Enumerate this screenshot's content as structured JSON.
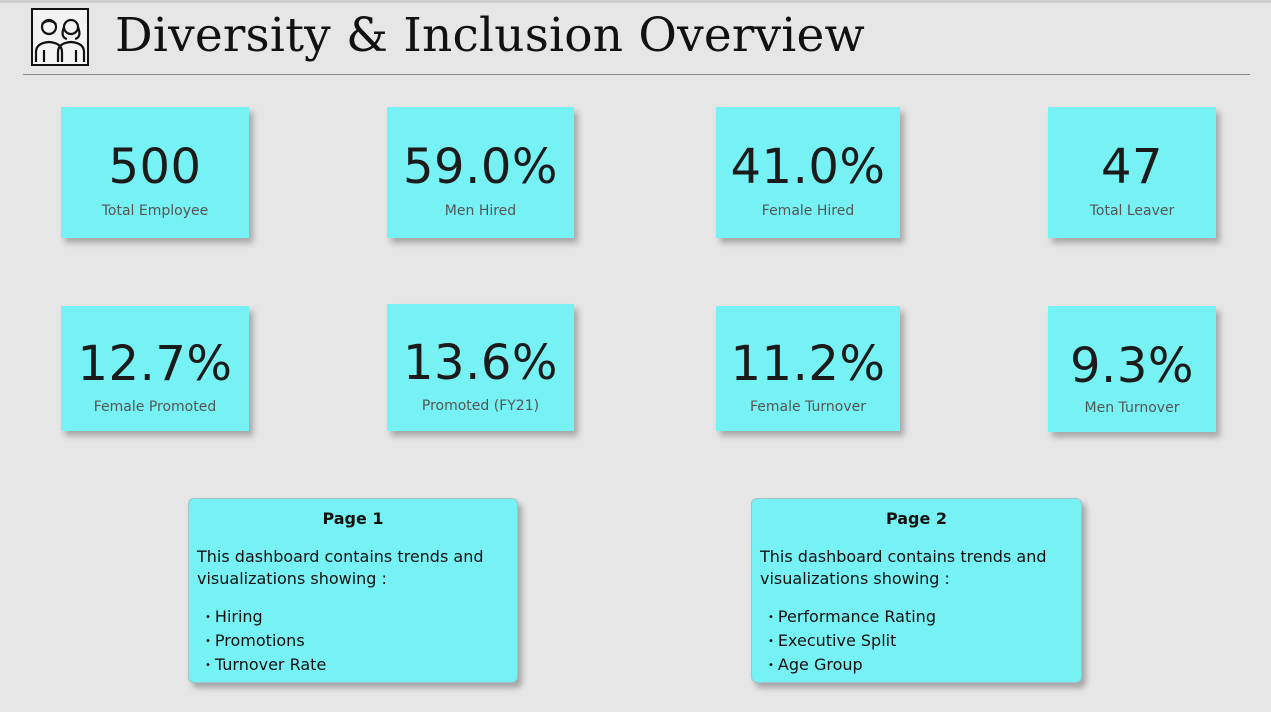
{
  "header": {
    "title": "Diversity & Inclusion Overview",
    "logo_icon": "people-icon"
  },
  "kpis": [
    {
      "value": "500",
      "label": "Total Employee"
    },
    {
      "value": "59.0%",
      "label": "Men Hired"
    },
    {
      "value": "41.0%",
      "label": "Female Hired"
    },
    {
      "value": "47",
      "label": "Total Leaver"
    },
    {
      "value": "12.7%",
      "label": "Female Promoted"
    },
    {
      "value": "13.6%",
      "label": "Promoted (FY21)"
    },
    {
      "value": "11.2%",
      "label": "Female  Turnover"
    },
    {
      "value": "9.3%",
      "label": "Men Turnover"
    }
  ],
  "pages": [
    {
      "title": "Page 1",
      "description": "This dashboard contains trends and visualizations showing :",
      "items": [
        "Hiring",
        "Promotions",
        "Turnover Rate"
      ]
    },
    {
      "title": "Page 2",
      "description": "This dashboard contains trends and visualizations showing :",
      "items": [
        "Performance Rating",
        "Executive Split",
        "Age Group"
      ]
    }
  ],
  "colors": {
    "card": "#76f2f5",
    "background": "#e6e6e6"
  }
}
